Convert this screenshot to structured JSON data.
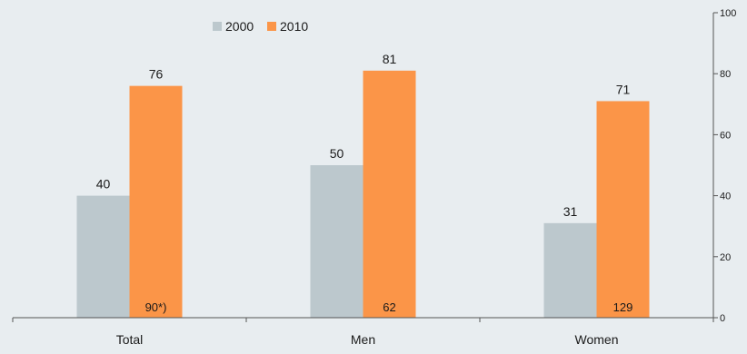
{
  "chart_data": {
    "type": "bar",
    "categories": [
      "Total",
      "Men",
      "Women"
    ],
    "series": [
      {
        "name": "2000",
        "values": [
          40,
          50,
          31
        ],
        "color": "#bcc8cd"
      },
      {
        "name": "2010",
        "values": [
          76,
          81,
          71
        ],
        "color": "#fb9548"
      }
    ],
    "inner_labels": [
      "90*)",
      "62",
      "129"
    ],
    "ylim": [
      0,
      100
    ],
    "yticks": [
      0,
      20,
      40,
      60,
      80,
      100
    ],
    "y_axis_position": "right",
    "legend_position": "top-left",
    "grid": false
  },
  "colors": {
    "background": "#e8edf0",
    "axis": "#555555",
    "text": "#1a1a1a"
  }
}
